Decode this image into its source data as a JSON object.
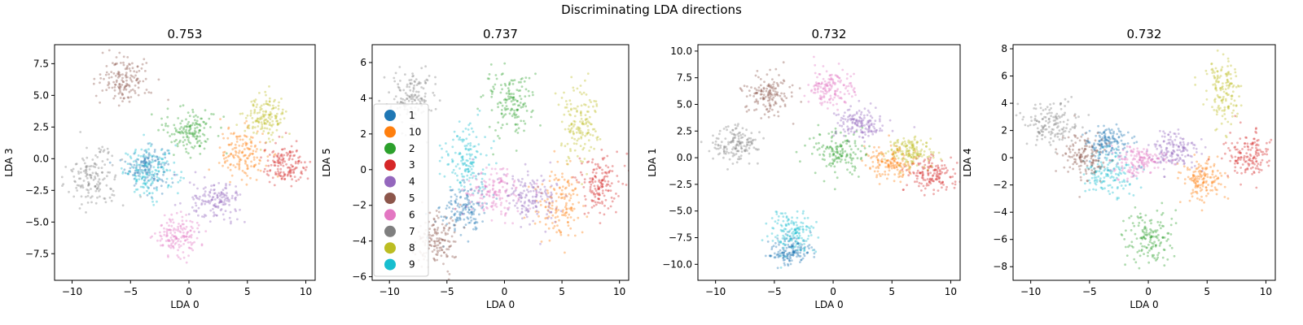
{
  "figure_title": "Discriminating LDA directions",
  "colors": {
    "1": "#1f77b4",
    "10": "#ff7f0e",
    "2": "#2ca02c",
    "3": "#d62728",
    "4": "#9467bd",
    "5": "#8c564b",
    "6": "#e377c2",
    "7": "#7f7f7f",
    "8": "#bcbd22",
    "9": "#17becf"
  },
  "legend": {
    "placement": "upper-left of panel 2",
    "entries": [
      "1",
      "10",
      "2",
      "3",
      "4",
      "5",
      "6",
      "7",
      "8",
      "9"
    ]
  },
  "chart_data": [
    {
      "type": "scatter",
      "title": "0.753",
      "xlabel": "LDA 0",
      "ylabel": "LDA 3",
      "xlim": [
        -11.5,
        10.8
      ],
      "ylim": [
        -9.6,
        9.0
      ],
      "xticks": [
        -10,
        -5,
        0,
        5,
        10
      ],
      "yticks": [
        -7.5,
        -5.0,
        -2.5,
        0.0,
        2.5,
        5.0,
        7.5
      ],
      "grid": false,
      "clusters": [
        {
          "label": "1",
          "cx": -3.6,
          "cy": -0.6,
          "sx": 0.9,
          "sy": 0.8
        },
        {
          "label": "9",
          "cx": -3.2,
          "cy": -1.1,
          "sx": 1.2,
          "sy": 1.0
        },
        {
          "label": "10",
          "cx": 4.6,
          "cy": 0.4,
          "sx": 1.0,
          "sy": 1.0
        },
        {
          "label": "2",
          "cx": 0.0,
          "cy": 2.3,
          "sx": 1.1,
          "sy": 0.9
        },
        {
          "label": "3",
          "cx": 8.3,
          "cy": -0.5,
          "sx": 1.0,
          "sy": 0.8
        },
        {
          "label": "4",
          "cx": 2.3,
          "cy": -3.4,
          "sx": 1.1,
          "sy": 0.8
        },
        {
          "label": "5",
          "cx": -5.5,
          "cy": 6.2,
          "sx": 1.1,
          "sy": 0.9
        },
        {
          "label": "6",
          "cx": -1.0,
          "cy": -6.0,
          "sx": 1.0,
          "sy": 0.8
        },
        {
          "label": "7",
          "cx": -8.1,
          "cy": -1.5,
          "sx": 1.1,
          "sy": 1.1
        },
        {
          "label": "8",
          "cx": 6.5,
          "cy": 3.3,
          "sx": 0.9,
          "sy": 0.8
        }
      ]
    },
    {
      "type": "scatter",
      "title": "0.737",
      "xlabel": "LDA 0",
      "ylabel": "LDA 5",
      "xlim": [
        -11.5,
        10.8
      ],
      "ylim": [
        -6.2,
        7.0
      ],
      "xticks": [
        -10,
        -5,
        0,
        5,
        10
      ],
      "yticks": [
        -6,
        -4,
        -2,
        0,
        2,
        4,
        6
      ],
      "grid": false,
      "clusters": [
        {
          "label": "1",
          "cx": -3.5,
          "cy": -2.2,
          "sx": 1.0,
          "sy": 0.7
        },
        {
          "label": "9",
          "cx": -3.4,
          "cy": 0.6,
          "sx": 1.0,
          "sy": 1.0
        },
        {
          "label": "10",
          "cx": 4.8,
          "cy": -1.8,
          "sx": 1.0,
          "sy": 0.9
        },
        {
          "label": "2",
          "cx": 0.3,
          "cy": 3.7,
          "sx": 1.1,
          "sy": 0.9
        },
        {
          "label": "3",
          "cx": 8.2,
          "cy": -0.8,
          "sx": 0.9,
          "sy": 0.8
        },
        {
          "label": "4",
          "cx": 2.3,
          "cy": -1.6,
          "sx": 1.2,
          "sy": 0.7
        },
        {
          "label": "5",
          "cx": -5.8,
          "cy": -4.0,
          "sx": 1.0,
          "sy": 0.8
        },
        {
          "label": "6",
          "cx": -0.8,
          "cy": -1.3,
          "sx": 1.3,
          "sy": 0.7
        },
        {
          "label": "7",
          "cx": -8.2,
          "cy": 4.0,
          "sx": 1.0,
          "sy": 0.8
        },
        {
          "label": "8",
          "cx": 6.5,
          "cy": 2.6,
          "sx": 0.8,
          "sy": 1.1
        }
      ]
    },
    {
      "type": "scatter",
      "title": "0.732",
      "xlabel": "LDA 0",
      "ylabel": "LDA 1",
      "xlim": [
        -11.5,
        10.8
      ],
      "ylim": [
        -11.5,
        10.6
      ],
      "xticks": [
        -10,
        -5,
        0,
        5,
        10
      ],
      "yticks": [
        -10.0,
        -7.5,
        -5.0,
        -2.5,
        0.0,
        2.5,
        5.0,
        7.5,
        10.0
      ],
      "grid": false,
      "clusters": [
        {
          "label": "1",
          "cx": -3.6,
          "cy": -8.8,
          "sx": 0.9,
          "sy": 0.7
        },
        {
          "label": "9",
          "cx": -3.4,
          "cy": -7.0,
          "sx": 1.0,
          "sy": 1.0
        },
        {
          "label": "10",
          "cx": 4.8,
          "cy": -0.5,
          "sx": 1.0,
          "sy": 0.8
        },
        {
          "label": "2",
          "cx": 0.3,
          "cy": 0.5,
          "sx": 1.2,
          "sy": 1.0
        },
        {
          "label": "3",
          "cx": 8.3,
          "cy": -1.6,
          "sx": 1.0,
          "sy": 0.8
        },
        {
          "label": "4",
          "cx": 2.4,
          "cy": 3.2,
          "sx": 1.1,
          "sy": 0.8
        },
        {
          "label": "5",
          "cx": -5.6,
          "cy": 6.0,
          "sx": 1.0,
          "sy": 0.9
        },
        {
          "label": "6",
          "cx": -0.3,
          "cy": 6.6,
          "sx": 1.0,
          "sy": 0.9
        },
        {
          "label": "7",
          "cx": -8.2,
          "cy": 1.3,
          "sx": 1.0,
          "sy": 0.9
        },
        {
          "label": "8",
          "cx": 6.6,
          "cy": 0.5,
          "sx": 0.9,
          "sy": 0.7
        }
      ]
    },
    {
      "type": "scatter",
      "title": "0.732",
      "xlabel": "LDA 0",
      "ylabel": "LDA 4",
      "xlim": [
        -11.5,
        10.8
      ],
      "ylim": [
        -9.0,
        8.3
      ],
      "xticks": [
        -10,
        -5,
        0,
        5,
        10
      ],
      "yticks": [
        -8,
        -6,
        -4,
        -2,
        0,
        2,
        4,
        6,
        8
      ],
      "grid": false,
      "clusters": [
        {
          "label": "1",
          "cx": -3.5,
          "cy": 1.1,
          "sx": 0.9,
          "sy": 0.6
        },
        {
          "label": "9",
          "cx": -3.3,
          "cy": -1.2,
          "sx": 1.1,
          "sy": 0.8
        },
        {
          "label": "10",
          "cx": 4.7,
          "cy": -1.7,
          "sx": 0.9,
          "sy": 0.8
        },
        {
          "label": "2",
          "cx": 0.0,
          "cy": -6.0,
          "sx": 1.0,
          "sy": 1.0
        },
        {
          "label": "3",
          "cx": 8.3,
          "cy": 0.2,
          "sx": 1.0,
          "sy": 0.9
        },
        {
          "label": "4",
          "cx": 2.2,
          "cy": 0.5,
          "sx": 1.1,
          "sy": 0.7
        },
        {
          "label": "5",
          "cx": -5.6,
          "cy": 0.1,
          "sx": 1.0,
          "sy": 0.8
        },
        {
          "label": "6",
          "cx": -0.8,
          "cy": -0.3,
          "sx": 1.1,
          "sy": 0.6
        },
        {
          "label": "7",
          "cx": -8.3,
          "cy": 2.5,
          "sx": 1.3,
          "sy": 0.8
        },
        {
          "label": "8",
          "cx": 6.5,
          "cy": 5.0,
          "sx": 0.7,
          "sy": 1.3
        }
      ]
    }
  ]
}
